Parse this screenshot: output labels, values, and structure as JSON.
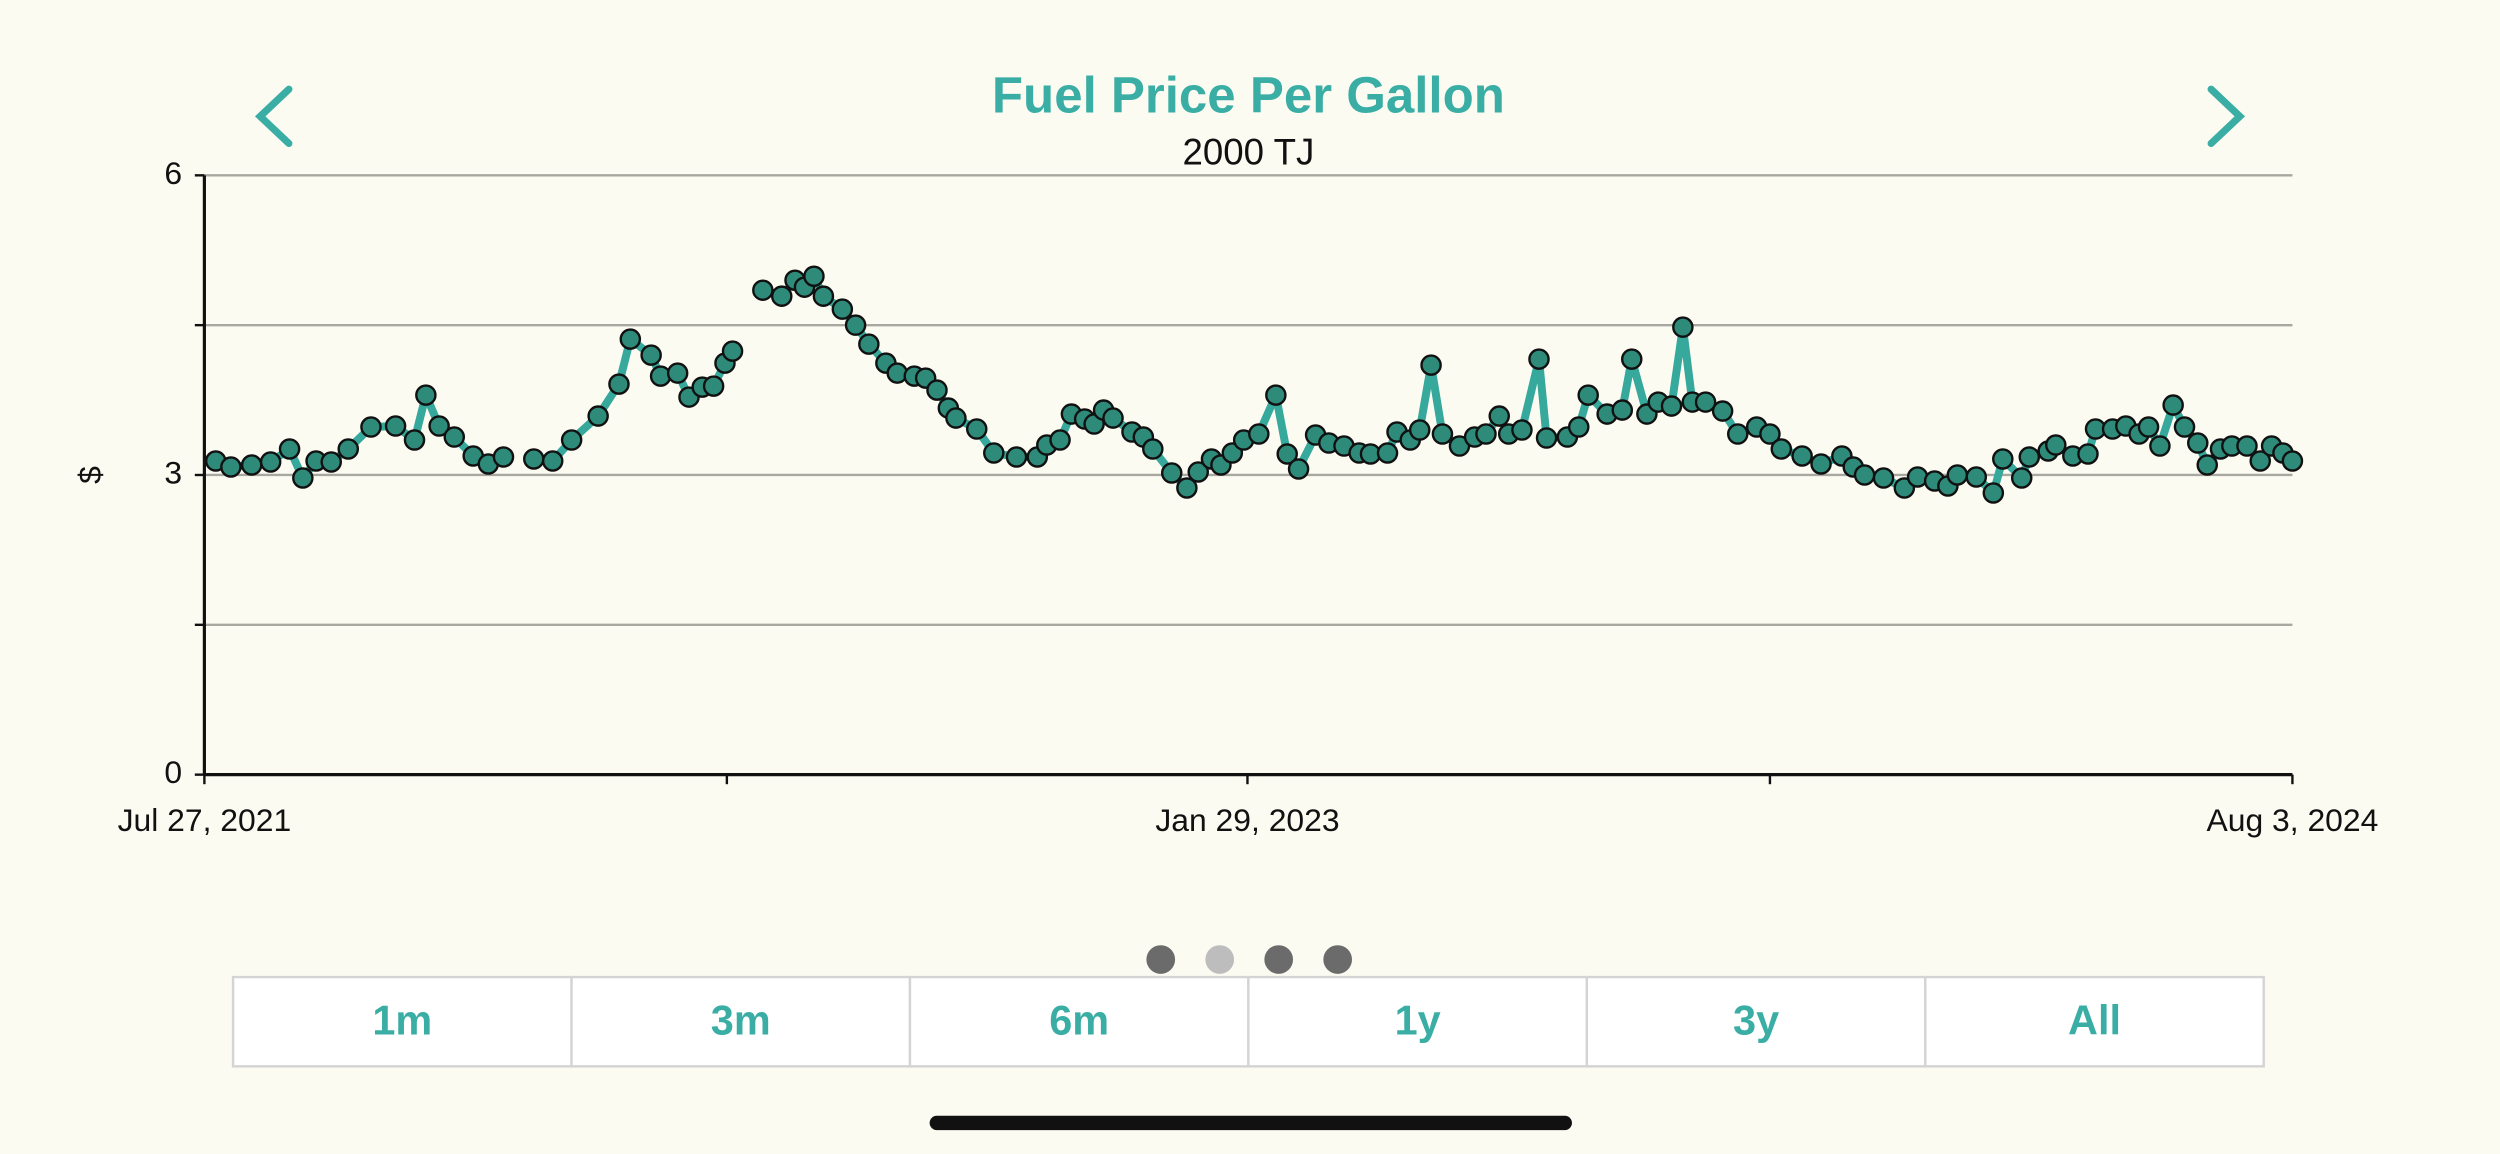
{
  "chart_data": {
    "type": "line",
    "title": "Fuel Price Per Gallon",
    "subtitle": "2000 TJ",
    "ylabel": "$",
    "xlim": [
      "2021-07-27",
      "2024-08-03"
    ],
    "xticks": [
      {
        "value": "2021-07-27",
        "label": "Jul 27, 2021"
      },
      {
        "value": "2022-04-29"
      },
      {
        "value": "2023-01-29",
        "label": "Jan 29, 2023"
      },
      {
        "value": "2023-11-01"
      },
      {
        "value": "2024-08-03",
        "label": "Aug 3, 2024"
      }
    ],
    "ylim": [
      0,
      6
    ],
    "yticks": [
      0,
      3,
      6
    ],
    "minor_yticks": [
      1.5,
      4.5
    ],
    "grid": true,
    "series": [
      {
        "name": "2000 TJ",
        "color": "#36a89c",
        "marker_color": "#2e8b7a",
        "x": [
          "2021-08-02",
          "2021-08-10",
          "2021-08-21",
          "2021-08-31",
          "2021-09-10",
          "2021-09-17",
          "2021-09-24",
          "2021-10-02",
          "2021-10-11",
          "2021-10-23",
          "2021-11-05",
          "2021-11-15",
          "2021-11-21",
          "2021-11-28",
          "2021-12-06",
          "2021-12-16",
          "2021-12-24",
          "2022-01-01",
          "2022-01-09",
          "2022-01-17",
          "2022-01-27",
          "2022-02-06",
          "2022-02-20",
          "2022-03-03",
          "2022-03-09",
          "2022-03-20",
          "2022-03-25",
          "2022-04-03",
          "2022-04-09",
          "2022-04-16",
          "2022-04-22",
          "2022-04-28",
          "2022-05-02",
          "2022-05-10",
          "2022-05-18",
          "2022-05-28",
          "2022-06-04",
          "2022-06-09",
          "2022-06-14",
          "2022-06-19",
          "2022-06-29",
          "2022-07-06",
          "2022-07-13",
          "2022-07-22",
          "2022-07-28",
          "2022-08-06",
          "2022-08-12",
          "2022-08-18",
          "2022-08-24",
          "2022-08-28",
          "2022-09-08",
          "2022-09-17",
          "2022-09-29",
          "2022-10-10",
          "2022-10-15",
          "2022-10-22",
          "2022-10-28",
          "2022-11-04",
          "2022-11-09",
          "2022-11-14",
          "2022-11-19",
          "2022-11-29",
          "2022-12-05",
          "2022-12-10",
          "2022-12-20",
          "2022-12-28",
          "2023-01-03",
          "2023-01-10",
          "2023-01-15",
          "2023-01-21",
          "2023-01-27",
          "2023-02-04",
          "2023-02-13",
          "2023-02-19",
          "2023-02-25",
          "2023-03-06",
          "2023-03-13",
          "2023-03-21",
          "2023-03-29",
          "2023-04-04",
          "2023-04-13",
          "2023-04-18",
          "2023-04-25",
          "2023-04-30",
          "2023-05-06",
          "2023-05-12",
          "2023-05-21",
          "2023-05-29",
          "2023-06-04",
          "2023-06-11",
          "2023-06-16",
          "2023-06-23",
          "2023-07-02",
          "2023-07-06",
          "2023-07-17",
          "2023-07-23",
          "2023-07-28",
          "2023-08-07",
          "2023-08-15",
          "2023-08-20",
          "2023-08-28",
          "2023-09-03",
          "2023-09-10",
          "2023-09-16",
          "2023-09-21",
          "2023-09-28",
          "2023-10-07",
          "2023-10-15",
          "2023-10-25",
          "2023-11-01",
          "2023-11-07",
          "2023-11-18",
          "2023-11-28",
          "2023-12-09",
          "2023-12-15",
          "2023-12-21",
          "2023-12-31",
          "2024-01-11",
          "2024-01-18",
          "2024-01-27",
          "2024-02-03",
          "2024-02-08",
          "2024-02-18",
          "2024-02-27",
          "2024-03-03",
          "2024-03-13",
          "2024-03-17",
          "2024-03-27",
          "2024-03-31",
          "2024-04-09",
          "2024-04-17",
          "2024-04-21",
          "2024-04-30",
          "2024-05-07",
          "2024-05-14",
          "2024-05-19",
          "2024-05-25",
          "2024-06-01",
          "2024-06-07",
          "2024-06-14",
          "2024-06-19",
          "2024-06-26",
          "2024-07-02",
          "2024-07-10",
          "2024-07-17",
          "2024-07-23",
          "2024-07-29",
          "2024-08-03"
        ],
        "values": [
          3.14,
          3.08,
          3.1,
          3.13,
          3.26,
          2.97,
          3.14,
          3.13,
          3.26,
          3.48,
          3.49,
          3.35,
          3.8,
          3.49,
          3.38,
          3.19,
          3.11,
          3.18,
          null,
          3.16,
          3.14,
          3.35,
          3.59,
          3.91,
          4.36,
          4.2,
          3.99,
          4.02,
          3.78,
          3.88,
          3.89,
          4.12,
          4.24,
          null,
          4.85,
          4.79,
          4.95,
          4.88,
          4.99,
          4.79,
          4.66,
          4.5,
          4.31,
          4.12,
          4.02,
          3.99,
          3.97,
          3.85,
          3.67,
          3.57,
          3.46,
          3.22,
          3.18,
          3.18,
          3.3,
          3.35,
          3.61,
          3.56,
          3.51,
          3.65,
          3.57,
          3.43,
          3.38,
          3.26,
          3.02,
          2.87,
          3.03,
          3.16,
          3.1,
          3.22,
          3.35,
          3.41,
          3.8,
          3.21,
          3.06,
          3.4,
          3.32,
          3.29,
          3.22,
          3.21,
          3.22,
          3.43,
          3.35,
          3.45,
          4.1,
          3.41,
          3.29,
          3.38,
          3.41,
          3.59,
          3.41,
          3.45,
          4.16,
          3.37,
          3.38,
          3.48,
          3.8,
          3.61,
          3.65,
          4.16,
          3.61,
          3.73,
          3.69,
          4.48,
          3.73,
          3.73,
          3.64,
          3.41,
          3.48,
          3.41,
          3.26,
          3.19,
          3.11,
          3.19,
          3.08,
          3.0,
          2.97,
          2.87,
          2.98,
          2.94,
          2.89,
          3.0,
          2.98,
          2.82,
          3.16,
          2.97,
          3.18,
          3.24,
          3.3,
          3.19,
          3.21,
          3.46,
          3.46,
          3.49,
          3.41,
          3.48,
          3.29,
          3.7,
          3.48,
          3.32,
          3.1,
          3.26,
          3.29,
          3.29,
          3.14,
          3.29,
          3.22,
          3.14
        ]
      }
    ]
  },
  "controls": {
    "range_buttons": [
      "1m",
      "3m",
      "6m",
      "1y",
      "3y",
      "All"
    ]
  }
}
